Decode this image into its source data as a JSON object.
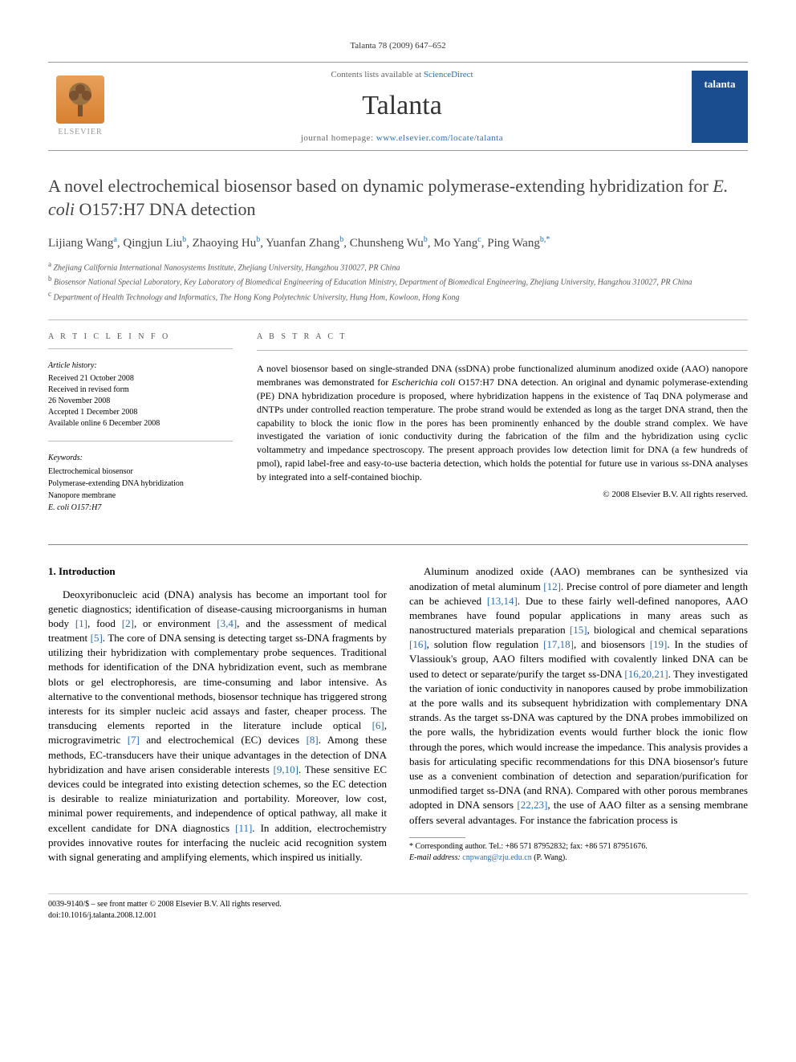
{
  "header": {
    "citation": "Talanta 78 (2009) 647–652",
    "contents_prefix": "Contents lists available at ",
    "contents_link": "ScienceDirect",
    "journal_name": "Talanta",
    "homepage_prefix": "journal homepage: ",
    "homepage_url": "www.elsevier.com/locate/talanta",
    "elsevier_label": "ELSEVIER",
    "cover_label": "talanta"
  },
  "article": {
    "title_html": "A novel electrochemical biosensor based on dynamic polymerase-extending hybridization for <em>E. coli</em> O157:H7 DNA detection",
    "authors_html": "Lijiang Wang<sup>a</sup>, Qingjun Liu<sup>b</sup>, Zhaoying Hu<sup>b</sup>, Yuanfan Zhang<sup>b</sup>, Chunsheng Wu<sup>b</sup>, Mo Yang<sup>c</sup>, Ping Wang<sup>b,*</sup>",
    "affiliations": [
      "a Zhejiang California International Nanosystems Institute, Zhejiang University, Hangzhou 310027, PR China",
      "b Biosensor National Special Laboratory, Key Laboratory of Biomedical Engineering of Education Ministry, Department of Biomedical Engineering, Zhejiang University, Hangzhou 310027, PR China",
      "c Department of Health Technology and Informatics, The Hong Kong Polytechnic University, Hung Hom, Kowloon, Hong Kong"
    ]
  },
  "info": {
    "heading": "A R T I C L E   I N F O",
    "history_label": "Article history:",
    "history": [
      "Received 21 October 2008",
      "Received in revised form",
      "26 November 2008",
      "Accepted 1 December 2008",
      "Available online 6 December 2008"
    ],
    "keywords_label": "Keywords:",
    "keywords": [
      "Electrochemical biosensor",
      "Polymerase-extending DNA hybridization",
      "Nanopore membrane",
      "E. coli O157:H7"
    ]
  },
  "abstract": {
    "heading": "A B S T R A C T",
    "text_html": "A novel biosensor based on single-stranded DNA (ssDNA) probe functionalized aluminum anodized oxide (AAO) nanopore membranes was demonstrated for <em>Escherichia coli</em> O157:H7 DNA detection. An original and dynamic polymerase-extending (PE) DNA hybridization procedure is proposed, where hybridization happens in the existence of Taq DNA polymerase and dNTPs under controlled reaction temperature. The probe strand would be extended as long as the target DNA strand, then the capability to block the ionic flow in the pores has been prominently enhanced by the double strand complex. We have investigated the variation of ionic conductivity during the fabrication of the film and the hybridization using cyclic voltammetry and impedance spectroscopy. The present approach provides low detection limit for DNA (a few hundreds of pmol), rapid label-free and easy-to-use bacteria detection, which holds the potential for future use in various ss-DNA analyses by integrated into a self-contained biochip.",
    "copyright": "© 2008 Elsevier B.V. All rights reserved."
  },
  "body": {
    "section_heading": "1. Introduction",
    "para1_html": "Deoxyribonucleic acid (DNA) analysis has become an important tool for genetic diagnostics; identification of disease-causing microorganisms in human body <a class='ref' href='#'>[1]</a>, food <a class='ref' href='#'>[2]</a>, or environment <a class='ref' href='#'>[3,4]</a>, and the assessment of medical treatment <a class='ref' href='#'>[5]</a>. The core of DNA sensing is detecting target ss-DNA fragments by utilizing their hybridization with complementary probe sequences. Traditional methods for identification of the DNA hybridization event, such as membrane blots or gel electrophoresis, are time-consuming and labor intensive. As alternative to the conventional methods, biosensor technique has triggered strong interests for its simpler nucleic acid assays and faster, cheaper process. The transducing elements reported in the literature include optical <a class='ref' href='#'>[6]</a>, microgravimetric <a class='ref' href='#'>[7]</a> and electrochemical (EC) devices <a class='ref' href='#'>[8]</a>. Among these methods, EC-transducers have their unique advantages in the detection of DNA hybridization and have arisen considerable interests <a class='ref' href='#'>[9,10]</a>. These sensitive EC devices could be integrated into existing detection schemes, so the EC detection is desirable to realize miniaturization and portability. Moreover, low cost, minimal power requirements, and independence of optical pathway, all make it excellent candidate for DNA diagnostics <a class='ref' href='#'>[11]</a>. In addition, electrochemistry provides innovative routes for interfacing the nucleic acid recognition system with signal generating and amplifying elements, which inspired us initially.",
    "para2_html": "Aluminum anodized oxide (AAO) membranes can be synthesized via anodization of metal aluminum <a class='ref' href='#'>[12]</a>. Precise control of pore diameter and length can be achieved <a class='ref' href='#'>[13,14]</a>. Due to these fairly well-defined nanopores, AAO membranes have found popular applications in many areas such as nanostructured materials preparation <a class='ref' href='#'>[15]</a>, biological and chemical separations <a class='ref' href='#'>[16]</a>, solution flow regulation <a class='ref' href='#'>[17,18]</a>, and biosensors <a class='ref' href='#'>[19]</a>. In the studies of Vlassiouk's group, AAO filters modified with covalently linked DNA can be used to detect or separate/purify the target ss-DNA <a class='ref' href='#'>[16,20,21]</a>. They investigated the variation of ionic conductivity in nanopores caused by probe immobilization at the pore walls and its subsequent hybridization with complementary DNA strands. As the target ss-DNA was captured by the DNA probes immobilized on the pore walls, the hybridization events would further block the ionic flow through the pores, which would increase the impedance. This analysis provides a basis for articulating specific recommendations for this DNA biosensor's future use as a convenient combination of detection and separation/purification for unmodified target ss-DNA (and RNA). Compared with other porous membranes adopted in DNA sensors <a class='ref' href='#'>[22,23]</a>, the use of AAO filter as a sensing membrane offers several advantages. For instance the fabrication process is"
  },
  "corresponding": {
    "star": "*",
    "line1": "Corresponding author. Tel.: +86 571 87952832; fax: +86 571 87951676.",
    "email_label": "E-mail address: ",
    "email": "cnpwang@zju.edu.cn",
    "email_suffix": " (P. Wang)."
  },
  "footer": {
    "front_matter": "0039-9140/$ – see front matter © 2008 Elsevier B.V. All rights reserved.",
    "doi": "doi:10.1016/j.talanta.2008.12.001"
  },
  "colors": {
    "link": "#2a6fb5",
    "text": "#000000",
    "muted": "#666666",
    "elsevier_orange": "#e8a05a",
    "cover_blue": "#1a4d8f"
  }
}
